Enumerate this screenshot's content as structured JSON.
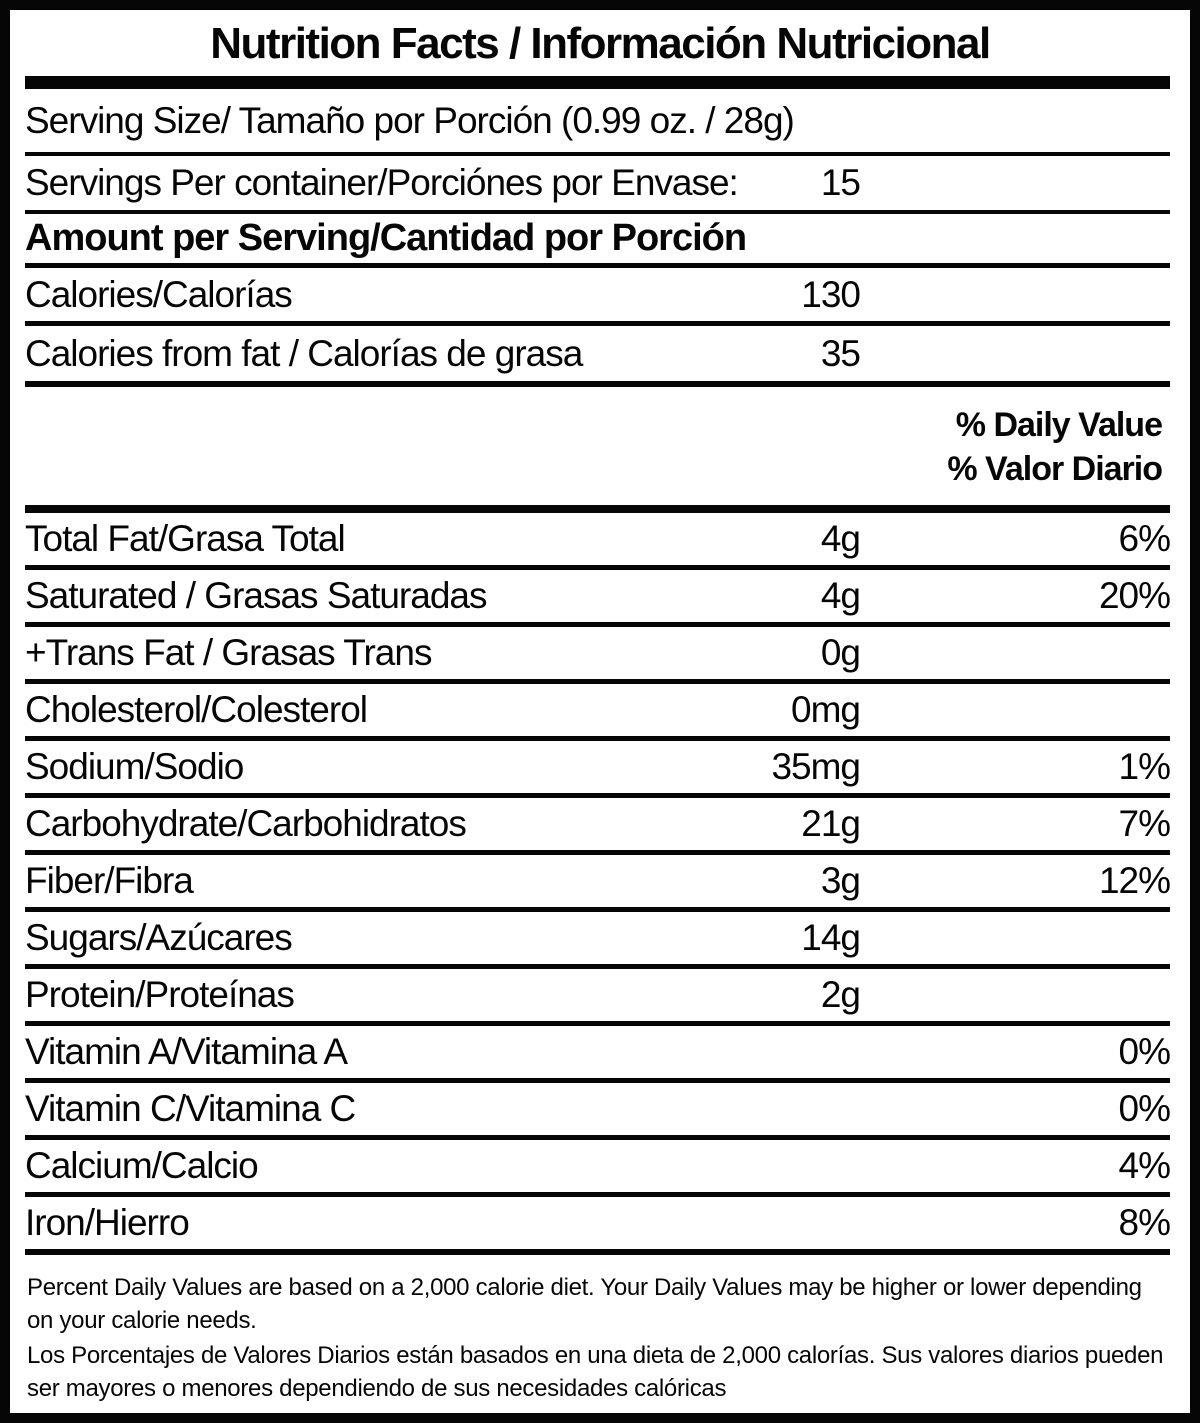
{
  "colors": {
    "ink": "#060606",
    "paper": "#ffffff"
  },
  "title": "Nutrition Facts / Información Nutricional",
  "serving": {
    "size_label": "Serving Size/ Tamaño por Porción (0.99 oz. / 28g)",
    "per_container_label": "Servings Per container/Porciónes por Envase:",
    "per_container_value": "15",
    "amount_header": "Amount per Serving/Cantidad por Porción"
  },
  "calories": {
    "label": "Calories/Calorías",
    "value": "130"
  },
  "calories_from_fat": {
    "label": "Calories from fat / Calorías de grasa",
    "value": "35"
  },
  "daily_value_headers": {
    "en": "% Daily Value",
    "es": "% Valor Diario"
  },
  "nutrients": [
    {
      "label": "Total Fat/Grasa Total",
      "value": "4g",
      "percent": "6%"
    },
    {
      "label": "Saturated / Grasas Saturadas",
      "value": "4g",
      "percent": "20%"
    },
    {
      "label": "+Trans Fat / Grasas Trans",
      "value": "0g",
      "percent": ""
    },
    {
      "label": "Cholesterol/Colesterol",
      "value": "0mg",
      "percent": ""
    },
    {
      "label": "Sodium/Sodio",
      "value": "35mg",
      "percent": "1%"
    },
    {
      "label": "Carbohydrate/Carbohidratos",
      "value": "21g",
      "percent": "7%"
    },
    {
      "label": "Fiber/Fibra",
      "value": "3g",
      "percent": "12%"
    },
    {
      "label": "Sugars/Azúcares",
      "value": "14g",
      "percent": ""
    },
    {
      "label": "Protein/Proteínas",
      "value": "2g",
      "percent": ""
    },
    {
      "label": "Vitamin A/Vitamina A",
      "value": "",
      "percent": "0%"
    },
    {
      "label": "Vitamin C/Vitamina C",
      "value": "",
      "percent": "0%"
    },
    {
      "label": "Calcium/Calcio",
      "value": "",
      "percent": "4%"
    },
    {
      "label": "Iron/Hierro",
      "value": "",
      "percent": "8%"
    }
  ],
  "footnotes": {
    "en": "Percent Daily Values are based on a 2,000 calorie diet. Your Daily Values may be higher or lower depending on your calorie needs.",
    "es": "Los Porcentajes de Valores Diarios están basados en una dieta de 2,000 calorías. Sus valores diarios pueden ser mayores o menores dependiendo de sus necesidades calóricas"
  }
}
